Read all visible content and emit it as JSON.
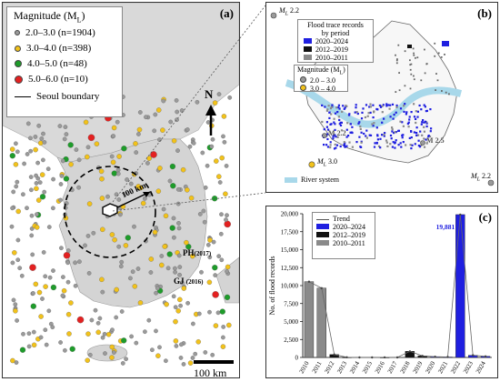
{
  "panel_a": {
    "tag": "(a)",
    "legend_title": "Magnitude (M",
    "legend_title_sub": "L",
    "legend_title_end": ")",
    "legend_items": [
      {
        "label": "2.0–3.0  (n=1904)",
        "color": "#9a9a9a"
      },
      {
        "label": "3.0–4.0  (n=398)",
        "color": "#f2c21a"
      },
      {
        "label": "4.0–5.0  (n=48)",
        "color": "#1e9c2a"
      },
      {
        "label": "5.0–6.0  (n=10)",
        "color": "#e32121"
      }
    ],
    "boundary_label": "Seoul boundary",
    "north_label": "N",
    "radius_label": "100 km",
    "pil_label": "PH",
    "pil_year": "(2017)",
    "gj_label": "GJ",
    "gj_year": "(2016)",
    "scale_label": "100 km"
  },
  "panel_b": {
    "tag": "(b)",
    "legend_title_1": "Flood trace records",
    "legend_title_2": "by period",
    "period_items": [
      {
        "label": "2020–2024",
        "color": "#1f1fe0"
      },
      {
        "label": "2012–2019",
        "color": "#111111"
      },
      {
        "label": "2010–2011",
        "color": "#8a8a8a"
      }
    ],
    "mag_title": "Magnitude (M",
    "mag_title_sub": "L",
    "mag_title_end": ")",
    "mag_items": [
      {
        "label": "2.0 – 3.0",
        "color": "#9a9a9a"
      },
      {
        "label": "3.0 – 4.0",
        "color": "#f2c21a"
      }
    ],
    "river_label": "River system",
    "eq_labels": {
      "top_left_prefix": "M",
      "top_left_sub": "L",
      "top_left_val": " 2.2",
      "left_prefix": "M",
      "left_sub": "L",
      "left_val": " 3.0",
      "bottom_right_prefix": "M",
      "bottom_right_sub": "L",
      "bottom_right_val": " 2.2",
      "center_left": "M",
      "center_left_val": "2.2",
      "center_right": "M",
      "center_right_val": "2.5"
    }
  },
  "chart_data": {
    "type": "bar",
    "tag": "(c)",
    "categories": [
      "2010",
      "2011",
      "2012",
      "2013",
      "2014",
      "2015",
      "2016",
      "2017",
      "2018",
      "2019",
      "2020",
      "2021",
      "2022",
      "2023",
      "2024"
    ],
    "series": [
      {
        "name": "2020–2024",
        "color": "#1f1fe0",
        "values": [
          0,
          0,
          0,
          0,
          0,
          0,
          0,
          0,
          0,
          0,
          100,
          60,
          19881,
          300,
          150
        ]
      },
      {
        "name": "2012–2019",
        "color": "#111111",
        "values": [
          0,
          0,
          400,
          20,
          0,
          0,
          10,
          0,
          850,
          220,
          0,
          0,
          0,
          0,
          0
        ]
      },
      {
        "name": "2010–2011",
        "color": "#8a8a8a",
        "values": [
          10550,
          9650,
          0,
          0,
          0,
          0,
          0,
          0,
          0,
          0,
          0,
          0,
          0,
          0,
          0
        ]
      }
    ],
    "trend": {
      "name": "Trend",
      "values": [
        10550,
        9650,
        400,
        20,
        0,
        0,
        10,
        0,
        850,
        220,
        100,
        60,
        19881,
        300,
        150
      ]
    },
    "ylabel": "No. of flood records",
    "ylim": [
      0,
      20000
    ],
    "yticks": [
      "0",
      "2,500",
      "5,000",
      "7,500",
      "10,000",
      "12,500",
      "15,000",
      "17,500",
      "20,000"
    ],
    "ytick_values": [
      0,
      2500,
      5000,
      7500,
      10000,
      12500,
      15000,
      17500,
      20000
    ],
    "annotation": "19,881",
    "legend_position": "top-left"
  }
}
